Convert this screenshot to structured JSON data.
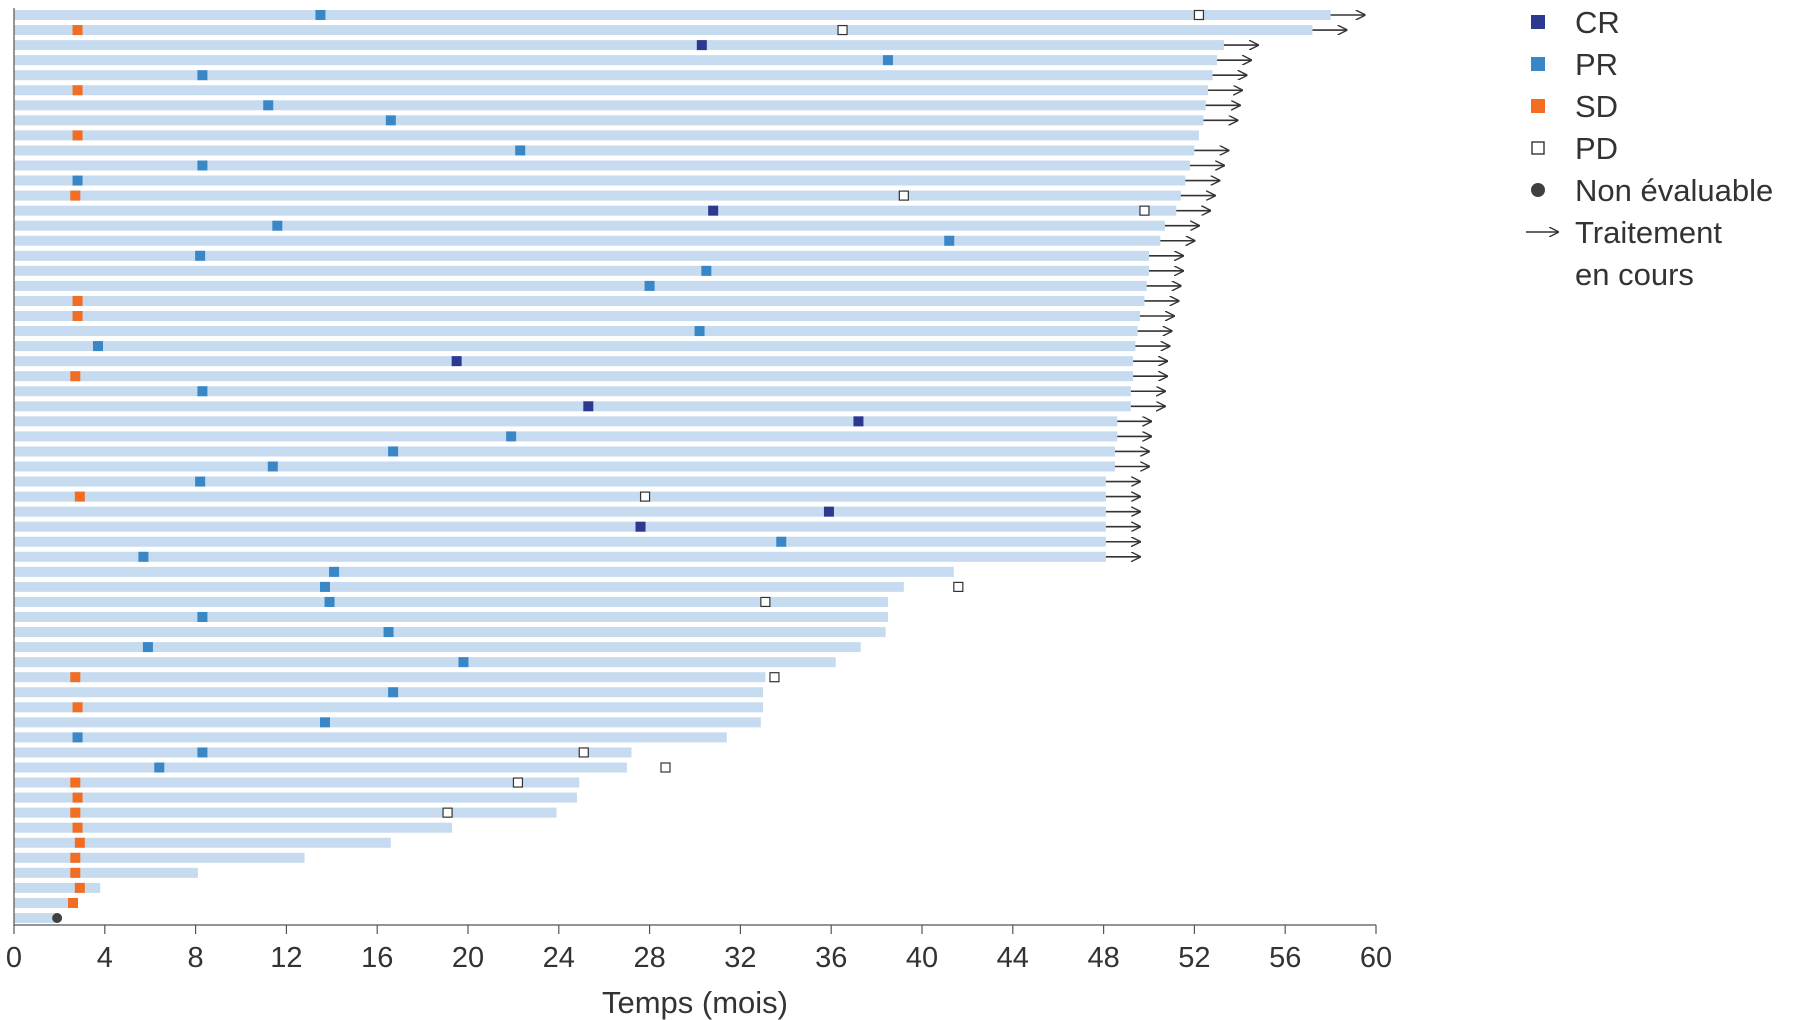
{
  "chart_data": {
    "type": "swimmer",
    "xlabel": "Temps (mois)",
    "xlim": [
      0,
      60
    ],
    "xticks": [
      0,
      4,
      8,
      12,
      16,
      20,
      24,
      28,
      32,
      36,
      40,
      44,
      48,
      52,
      56,
      60
    ],
    "grid": false,
    "legend_position": "top-right",
    "colors": {
      "bar": "#c6dbef",
      "CR": "#2b3990",
      "PR": "#3a87c8",
      "SD": "#f26c22",
      "PD": "#ffffff",
      "NE": "#404040",
      "arrow": "#333333"
    },
    "legend": [
      {
        "key": "CR",
        "label": "CR",
        "icon": "filled-square-dark-blue"
      },
      {
        "key": "PR",
        "label": "PR",
        "icon": "filled-square-blue"
      },
      {
        "key": "SD",
        "label": "SD",
        "icon": "filled-square-orange"
      },
      {
        "key": "PD",
        "label": "PD",
        "icon": "open-square"
      },
      {
        "key": "NE",
        "label": "Non évaluable",
        "icon": "filled-circle"
      },
      {
        "key": "ongoing",
        "label": [
          "Traitement",
          "en cours"
        ],
        "icon": "arrow-right"
      }
    ],
    "patients": [
      {
        "end": 58.0,
        "ongoing": true,
        "events": [
          [
            "PR",
            13.5
          ],
          [
            "PD",
            52.2
          ]
        ]
      },
      {
        "end": 57.2,
        "ongoing": true,
        "events": [
          [
            "SD",
            2.8
          ],
          [
            "PD",
            36.5
          ]
        ]
      },
      {
        "end": 53.3,
        "ongoing": true,
        "events": [
          [
            "CR",
            30.3
          ]
        ]
      },
      {
        "end": 53.0,
        "ongoing": true,
        "events": [
          [
            "PR",
            38.5
          ]
        ]
      },
      {
        "end": 52.8,
        "ongoing": true,
        "events": [
          [
            "PR",
            8.3
          ]
        ]
      },
      {
        "end": 52.6,
        "ongoing": true,
        "events": [
          [
            "SD",
            2.8
          ]
        ]
      },
      {
        "end": 52.5,
        "ongoing": true,
        "events": [
          [
            "PR",
            11.2
          ]
        ]
      },
      {
        "end": 52.4,
        "ongoing": true,
        "events": [
          [
            "PR",
            16.6
          ]
        ]
      },
      {
        "end": 52.2,
        "ongoing": false,
        "events": [
          [
            "SD",
            2.8
          ]
        ]
      },
      {
        "end": 52.0,
        "ongoing": true,
        "events": [
          [
            "PR",
            22.3
          ]
        ]
      },
      {
        "end": 51.8,
        "ongoing": true,
        "events": [
          [
            "PR",
            8.3
          ]
        ]
      },
      {
        "end": 51.6,
        "ongoing": true,
        "events": [
          [
            "PR",
            2.8
          ]
        ]
      },
      {
        "end": 51.4,
        "ongoing": true,
        "events": [
          [
            "SD",
            2.7
          ],
          [
            "PD",
            39.2
          ]
        ]
      },
      {
        "end": 51.2,
        "ongoing": true,
        "events": [
          [
            "CR",
            30.8
          ],
          [
            "PD",
            49.8
          ]
        ]
      },
      {
        "end": 50.7,
        "ongoing": true,
        "events": [
          [
            "PR",
            11.6
          ]
        ]
      },
      {
        "end": 50.5,
        "ongoing": true,
        "events": [
          [
            "PR",
            41.2
          ]
        ]
      },
      {
        "end": 50.0,
        "ongoing": true,
        "events": [
          [
            "PR",
            8.2
          ]
        ]
      },
      {
        "end": 50.0,
        "ongoing": true,
        "events": [
          [
            "PR",
            30.5
          ]
        ]
      },
      {
        "end": 49.9,
        "ongoing": true,
        "events": [
          [
            "PR",
            28.0
          ]
        ]
      },
      {
        "end": 49.8,
        "ongoing": true,
        "events": [
          [
            "SD",
            2.8
          ]
        ]
      },
      {
        "end": 49.6,
        "ongoing": true,
        "events": [
          [
            "SD",
            2.8
          ]
        ]
      },
      {
        "end": 49.5,
        "ongoing": true,
        "events": [
          [
            "PR",
            30.2
          ]
        ]
      },
      {
        "end": 49.4,
        "ongoing": true,
        "events": [
          [
            "PR",
            3.7
          ]
        ]
      },
      {
        "end": 49.3,
        "ongoing": true,
        "events": [
          [
            "CR",
            19.5
          ]
        ]
      },
      {
        "end": 49.3,
        "ongoing": true,
        "events": [
          [
            "SD",
            2.7
          ]
        ]
      },
      {
        "end": 49.2,
        "ongoing": true,
        "events": [
          [
            "PR",
            8.3
          ]
        ]
      },
      {
        "end": 49.2,
        "ongoing": true,
        "events": [
          [
            "CR",
            25.3
          ]
        ]
      },
      {
        "end": 48.6,
        "ongoing": true,
        "events": [
          [
            "CR",
            37.2
          ]
        ]
      },
      {
        "end": 48.6,
        "ongoing": true,
        "events": [
          [
            "PR",
            21.9
          ]
        ]
      },
      {
        "end": 48.5,
        "ongoing": true,
        "events": [
          [
            "PR",
            16.7
          ]
        ]
      },
      {
        "end": 48.5,
        "ongoing": true,
        "events": [
          [
            "PR",
            11.4
          ]
        ]
      },
      {
        "end": 48.1,
        "ongoing": true,
        "events": [
          [
            "PR",
            8.2
          ]
        ]
      },
      {
        "end": 48.1,
        "ongoing": true,
        "events": [
          [
            "SD",
            2.9
          ],
          [
            "PD",
            27.8
          ]
        ]
      },
      {
        "end": 48.1,
        "ongoing": true,
        "events": [
          [
            "CR",
            35.9
          ]
        ]
      },
      {
        "end": 48.1,
        "ongoing": true,
        "events": [
          [
            "CR",
            27.6
          ]
        ]
      },
      {
        "end": 48.1,
        "ongoing": true,
        "events": [
          [
            "PR",
            33.8
          ]
        ]
      },
      {
        "end": 48.1,
        "ongoing": true,
        "events": [
          [
            "PR",
            5.7
          ]
        ]
      },
      {
        "end": 41.4,
        "ongoing": false,
        "events": [
          [
            "PR",
            14.1
          ]
        ]
      },
      {
        "end": 39.2,
        "ongoing": false,
        "events": [
          [
            "PR",
            13.7
          ],
          [
            "PD",
            41.6
          ]
        ]
      },
      {
        "end": 38.5,
        "ongoing": false,
        "events": [
          [
            "PR",
            13.9
          ],
          [
            "PD",
            33.1
          ]
        ]
      },
      {
        "end": 38.5,
        "ongoing": false,
        "events": [
          [
            "PR",
            8.3
          ]
        ]
      },
      {
        "end": 38.4,
        "ongoing": false,
        "events": [
          [
            "PR",
            16.5
          ]
        ]
      },
      {
        "end": 37.3,
        "ongoing": false,
        "events": [
          [
            "PR",
            5.9
          ]
        ]
      },
      {
        "end": 36.2,
        "ongoing": false,
        "events": [
          [
            "PR",
            19.8
          ]
        ]
      },
      {
        "end": 33.1,
        "ongoing": false,
        "events": [
          [
            "SD",
            2.7
          ],
          [
            "PD",
            33.5
          ]
        ]
      },
      {
        "end": 33.0,
        "ongoing": false,
        "events": [
          [
            "PR",
            16.7
          ]
        ]
      },
      {
        "end": 33.0,
        "ongoing": false,
        "events": [
          [
            "SD",
            2.8
          ]
        ]
      },
      {
        "end": 32.9,
        "ongoing": false,
        "events": [
          [
            "PR",
            13.7
          ]
        ]
      },
      {
        "end": 31.4,
        "ongoing": false,
        "events": [
          [
            "PR",
            2.8
          ]
        ]
      },
      {
        "end": 27.2,
        "ongoing": false,
        "events": [
          [
            "PR",
            8.3
          ],
          [
            "PD",
            25.1
          ]
        ]
      },
      {
        "end": 27.0,
        "ongoing": false,
        "events": [
          [
            "PR",
            6.4
          ],
          [
            "PD",
            28.7
          ]
        ]
      },
      {
        "end": 24.9,
        "ongoing": false,
        "events": [
          [
            "SD",
            2.7
          ],
          [
            "PD",
            22.2
          ]
        ]
      },
      {
        "end": 24.8,
        "ongoing": false,
        "events": [
          [
            "SD",
            2.8
          ]
        ]
      },
      {
        "end": 23.9,
        "ongoing": false,
        "events": [
          [
            "SD",
            2.7
          ],
          [
            "PD",
            19.1
          ]
        ]
      },
      {
        "end": 19.3,
        "ongoing": false,
        "events": [
          [
            "SD",
            2.8
          ]
        ]
      },
      {
        "end": 16.6,
        "ongoing": false,
        "events": [
          [
            "SD",
            2.9
          ]
        ]
      },
      {
        "end": 12.8,
        "ongoing": false,
        "events": [
          [
            "SD",
            2.7
          ]
        ]
      },
      {
        "end": 8.1,
        "ongoing": false,
        "events": [
          [
            "SD",
            2.7
          ]
        ]
      },
      {
        "end": 3.8,
        "ongoing": false,
        "events": [
          [
            "SD",
            2.9
          ]
        ]
      },
      {
        "end": 2.7,
        "ongoing": false,
        "events": [
          [
            "SD",
            2.6
          ]
        ]
      },
      {
        "end": 1.9,
        "ongoing": false,
        "events": [
          [
            "NE",
            1.9
          ]
        ]
      }
    ]
  }
}
